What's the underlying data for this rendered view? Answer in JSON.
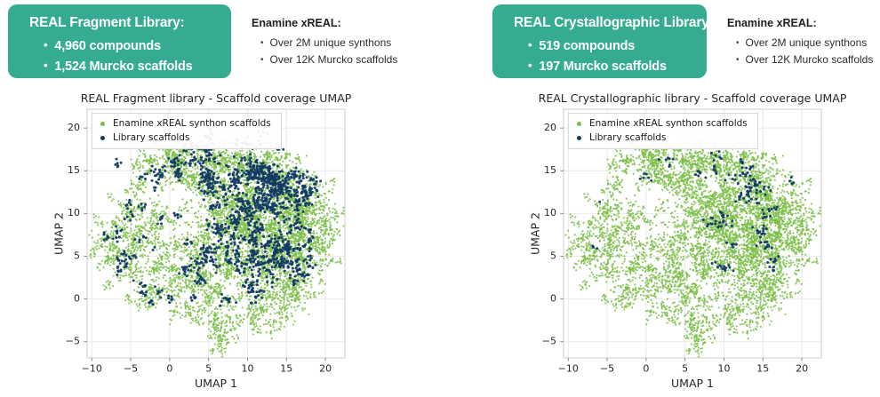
{
  "header": {
    "bullet_char": "•",
    "box_bg": "#35ab92",
    "box_text": "#ffffff",
    "panels": [
      {
        "box": {
          "title": "REAL Fragment Library:",
          "items": [
            "4,960 compounds",
            "1,524 Murcko scaffolds"
          ]
        },
        "note": {
          "title": "Enamine xREAL:",
          "items": [
            "Over 2M unique synthons",
            "Over 12K Murcko scaffolds"
          ]
        }
      },
      {
        "box": {
          "title": "REAL Crystallographic Library:",
          "items": [
            "519 compounds",
            "197 Murcko scaffolds"
          ]
        },
        "note": {
          "title": "Enamine xREAL:",
          "items": [
            "Over 2M unique synthons",
            "Over 12K Murcko scaffolds"
          ]
        }
      }
    ]
  },
  "chart_data": [
    {
      "type": "scatter",
      "title": "REAL Fragment library - Scaffold coverage UMAP",
      "xlabel": "UMAP 1",
      "ylabel": "UMAP 2",
      "xlim": [
        -10.6,
        22.5
      ],
      "ylim": [
        -6.9,
        22.2
      ],
      "xticks": [
        -10,
        -5,
        0,
        5,
        10,
        15,
        20
      ],
      "yticks": [
        -5,
        0,
        5,
        10,
        15,
        20
      ],
      "grid": true,
      "grid_color": "#e9e9e9",
      "frame_color": "#cccccc",
      "legend": {
        "position": "upper-left"
      },
      "series": [
        {
          "name": "Enamine xREAL synthon scaffolds",
          "color": "#7cbe49",
          "alpha": 0.85,
          "radius": 1.1,
          "z": 1,
          "in_legend": true,
          "points_from": "xreal_synthon_green"
        },
        {
          "name": "Library scaffolds",
          "color": "#123a64",
          "alpha": 0.95,
          "radius": 1.5,
          "z": 2,
          "in_legend": true,
          "points_from": "fragment_library_navy"
        },
        {
          "name": "faint outlier synthon scaffolds",
          "color": "#7cbe49",
          "alpha": 0.15,
          "radius": 1.4,
          "z": 0,
          "in_legend": false,
          "points_from": "green_faint"
        }
      ]
    },
    {
      "type": "scatter",
      "title": "REAL Crystallographic library - Scaffold coverage UMAP",
      "xlabel": "UMAP 1",
      "ylabel": "UMAP 2",
      "xlim": [
        -10.6,
        22.5
      ],
      "ylim": [
        -6.9,
        22.2
      ],
      "xticks": [
        -10,
        -5,
        0,
        5,
        10,
        15,
        20
      ],
      "yticks": [
        -5,
        0,
        5,
        10,
        15,
        20
      ],
      "grid": true,
      "grid_color": "#e9e9e9",
      "frame_color": "#cccccc",
      "legend": {
        "position": "upper-left"
      },
      "series": [
        {
          "name": "Enamine xREAL synthon scaffolds",
          "color": "#7cbe49",
          "alpha": 0.85,
          "radius": 1.1,
          "z": 1,
          "in_legend": true,
          "points_from": "xreal_synthon_green"
        },
        {
          "name": "Library scaffolds",
          "color": "#123a64",
          "alpha": 0.95,
          "radius": 1.5,
          "z": 2,
          "in_legend": true,
          "points_from": "crystallographic_library_navy"
        },
        {
          "name": "faint outlier synthon scaffolds",
          "color": "#7cbe49",
          "alpha": 0.15,
          "radius": 1.4,
          "z": 0,
          "in_legend": false,
          "points_from": "green_faint"
        }
      ]
    }
  ],
  "scatter_generation": {
    "note": "approximate cluster model reconstructed from pixels; each cluster is [cx, cy, sx, sy, n] in UMAP data units",
    "seeds": {
      "xreal_synthon_green": 42,
      "green_faint": 5,
      "fragment_library_navy": 7,
      "crystallographic_library_navy": 11
    },
    "cluster_sets": {
      "xreal_synthon_green": [
        [
          11,
          7,
          3.5,
          3.5,
          700
        ],
        [
          8,
          9,
          3,
          3,
          480
        ],
        [
          14,
          9,
          2.5,
          2.5,
          400
        ],
        [
          12,
          3,
          3,
          2,
          340
        ],
        [
          16,
          6,
          2,
          2.5,
          300
        ],
        [
          7,
          4,
          2.5,
          2,
          260
        ],
        [
          10,
          12.5,
          2.5,
          1.6,
          260
        ],
        [
          15,
          12,
          2,
          1.5,
          250
        ],
        [
          17.5,
          10,
          1.5,
          1.5,
          180
        ],
        [
          18.5,
          5,
          1.5,
          2,
          150
        ],
        [
          0.5,
          16.5,
          1.5,
          1.2,
          170
        ],
        [
          3.5,
          16,
          1.5,
          1.3,
          160
        ],
        [
          6.5,
          16.5,
          1.5,
          1.2,
          150
        ],
        [
          -2.5,
          15.5,
          1.2,
          1.2,
          110
        ],
        [
          9,
          16,
          1.5,
          1.2,
          140
        ],
        [
          2,
          14,
          1.2,
          1,
          80
        ],
        [
          5,
          13.8,
          1.2,
          1,
          80
        ],
        [
          12,
          16,
          1.5,
          1.2,
          130
        ],
        [
          -1,
          17.8,
          1,
          0.8,
          60
        ],
        [
          14.5,
          15.5,
          1.2,
          1,
          110
        ],
        [
          -5,
          8,
          1.8,
          1.5,
          150
        ],
        [
          -7,
          5,
          1.5,
          1.5,
          120
        ],
        [
          -4,
          4.5,
          1.8,
          1.8,
          150
        ],
        [
          -1.5,
          6.5,
          1.5,
          1.5,
          130
        ],
        [
          -2,
          9.5,
          1.5,
          1.2,
          90
        ],
        [
          -6,
          10.5,
          1.2,
          1,
          55
        ],
        [
          -8.5,
          5.5,
          1,
          1,
          45
        ],
        [
          -4.5,
          12.5,
          1,
          1,
          50
        ],
        [
          -3,
          0.5,
          1.5,
          1.2,
          80
        ],
        [
          -0.5,
          1.5,
          1.5,
          1.5,
          100
        ],
        [
          1.5,
          0,
          1.5,
          1.2,
          80
        ],
        [
          5,
          -1.5,
          1.5,
          1.5,
          120
        ],
        [
          8,
          -3,
          1.5,
          1.5,
          120
        ],
        [
          11,
          -2,
          1.5,
          1.5,
          110
        ],
        [
          6.5,
          -5,
          1,
          0.8,
          45
        ],
        [
          3,
          2.5,
          1.5,
          1.5,
          110
        ],
        [
          13.5,
          -1,
          1.5,
          1,
          80
        ],
        [
          15.5,
          0.5,
          1.2,
          1,
          70
        ],
        [
          17.5,
          2,
          1,
          1,
          55
        ],
        [
          20,
          8.5,
          1,
          1.5,
          75
        ],
        [
          19.5,
          12,
          1,
          1,
          55
        ],
        [
          3.5,
          6,
          1.5,
          2,
          140
        ],
        [
          6,
          10.5,
          1.5,
          1.5,
          110
        ]
      ],
      "green_faint": [
        [
          2.5,
          20.4,
          0.8,
          0.5,
          12
        ],
        [
          5.5,
          19.9,
          0.7,
          0.4,
          8
        ],
        [
          9,
          19.8,
          0.8,
          0.5,
          10
        ],
        [
          12.3,
          19.4,
          0.6,
          0.4,
          6
        ],
        [
          6.8,
          18.9,
          0.5,
          0.4,
          5
        ]
      ],
      "fragment_library_navy": [
        [
          14.5,
          13.5,
          1.6,
          1.3,
          280
        ],
        [
          12,
          12,
          1.5,
          1.5,
          120
        ],
        [
          9,
          15,
          2,
          1.5,
          120
        ],
        [
          2.5,
          16,
          2.5,
          1.4,
          110
        ],
        [
          -1.5,
          14.5,
          1.5,
          1,
          40
        ],
        [
          5,
          12.5,
          1.5,
          1,
          45
        ],
        [
          9.5,
          8,
          2.8,
          2.2,
          200
        ],
        [
          13,
          6,
          2.2,
          2,
          140
        ],
        [
          16.5,
          7.5,
          1.5,
          2,
          90
        ],
        [
          11,
          3.5,
          2.2,
          1.5,
          90
        ],
        [
          15.8,
          3.5,
          1.2,
          1,
          40
        ],
        [
          6.5,
          5,
          1.8,
          1.8,
          70
        ],
        [
          3,
          3.5,
          1.8,
          2,
          60
        ],
        [
          -4.5,
          7.5,
          2.2,
          2,
          50
        ],
        [
          -6,
          4.5,
          1.8,
          1.5,
          30
        ],
        [
          -3,
          0.3,
          1.8,
          1,
          25
        ],
        [
          7.5,
          0.5,
          2.5,
          1,
          30
        ],
        [
          4.5,
          17.5,
          1.5,
          0.8,
          30
        ],
        [
          11.5,
          16.5,
          1.5,
          0.8,
          35
        ],
        [
          17.5,
          11.5,
          1,
          1,
          35
        ]
      ],
      "crystallographic_library_navy": [
        [
          14.5,
          13.7,
          1.2,
          0.9,
          28
        ],
        [
          12.5,
          12.5,
          1.8,
          1.5,
          20
        ],
        [
          8.5,
          13.5,
          2.5,
          1.5,
          22
        ],
        [
          6.5,
          15.5,
          2,
          1.2,
          12
        ],
        [
          1.5,
          15,
          1.5,
          1,
          7
        ],
        [
          -0.5,
          17.8,
          1,
          0.6,
          4
        ],
        [
          10.5,
          8.5,
          2.5,
          2,
          25
        ],
        [
          13.5,
          6,
          2.5,
          2,
          25
        ],
        [
          16,
          9.5,
          1.5,
          1.8,
          14
        ],
        [
          16.5,
          12.5,
          1,
          1,
          10
        ],
        [
          7.5,
          6,
          1.8,
          1.5,
          10
        ],
        [
          9,
          3.8,
          2,
          0.8,
          8
        ],
        [
          15.5,
          4,
          1.5,
          0.8,
          6
        ],
        [
          -6.3,
          7,
          0.8,
          1,
          3
        ],
        [
          -6.5,
          11.5,
          0.3,
          0.3,
          1
        ],
        [
          11,
          10,
          1.5,
          1.5,
          8
        ]
      ]
    }
  }
}
